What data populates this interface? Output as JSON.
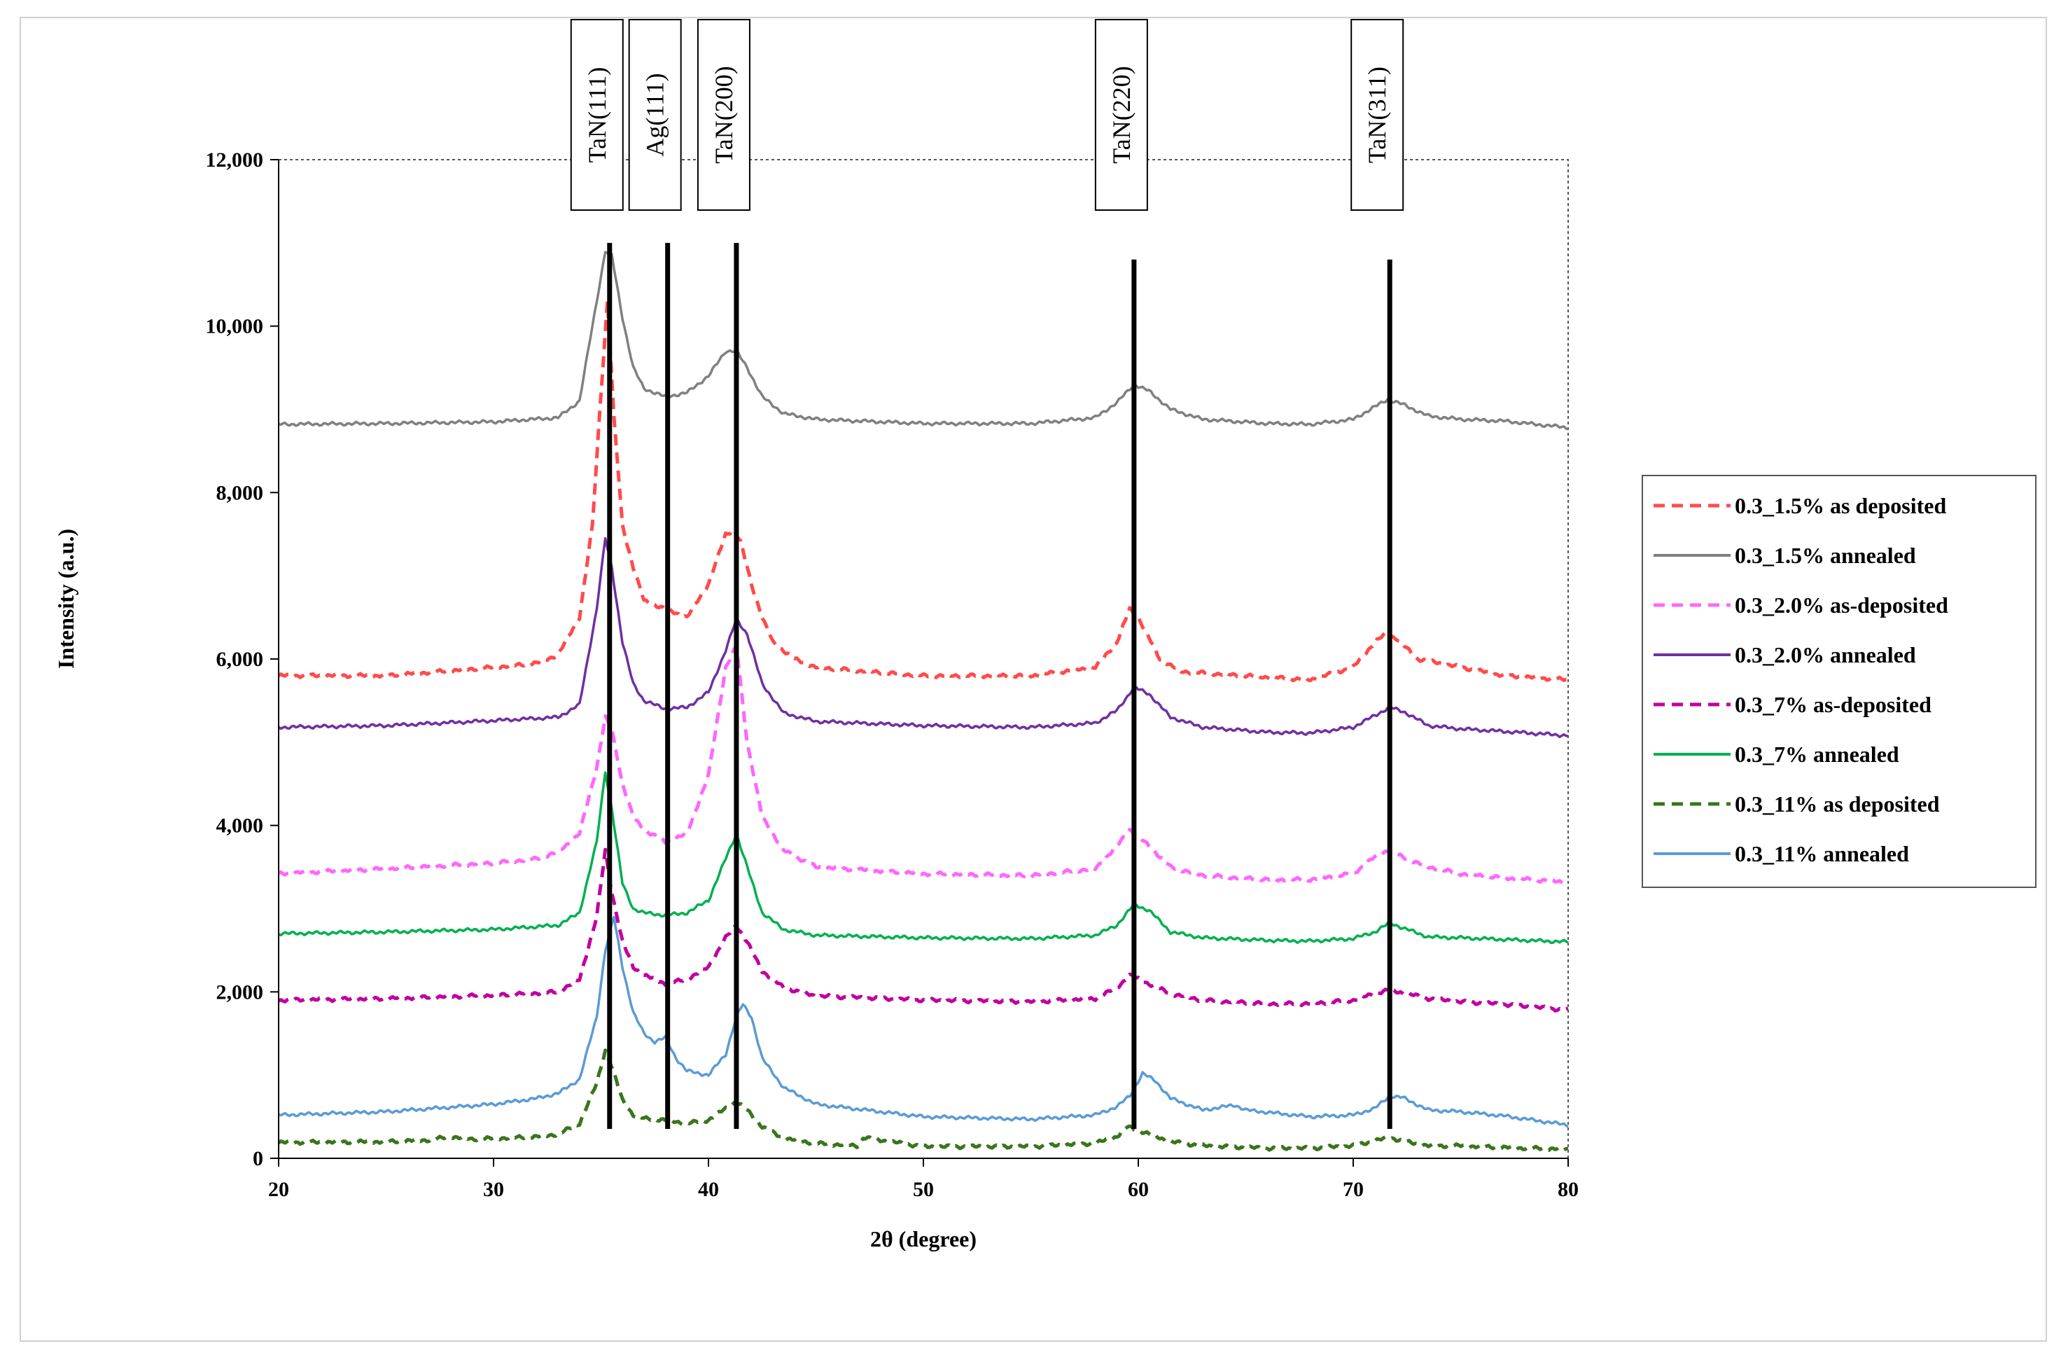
{
  "chart_data": {
    "type": "line",
    "title": "",
    "xlabel": "2θ (degree)",
    "ylabel": "Intensity (a.u.)",
    "xlim": [
      20,
      80
    ],
    "ylim": [
      0,
      12000
    ],
    "x_ticks": [
      20,
      30,
      40,
      50,
      60,
      70,
      80
    ],
    "x_tick_labels": [
      "20",
      "30",
      "40",
      "50",
      "60",
      "70",
      "80"
    ],
    "y_ticks": [
      0,
      2000,
      4000,
      6000,
      8000,
      10000,
      12000
    ],
    "y_tick_labels": [
      "0",
      "2,000",
      "4,000",
      "6,000",
      "8,000",
      "10,000",
      "12,000"
    ],
    "grid": false,
    "legend_position": "right",
    "reference_lines": [
      {
        "label": "TaN(111)",
        "x": 35.4,
        "y_top": 11000
      },
      {
        "label": "Ag(111)",
        "x": 38.1,
        "y_top": 11000
      },
      {
        "label": "TaN(200)",
        "x": 41.3,
        "y_top": 11000
      },
      {
        "label": "TaN(220)",
        "x": 59.8,
        "y_top": 10800
      },
      {
        "label": "TaN(311)",
        "x": 71.7,
        "y_top": 10800
      }
    ],
    "series": [
      {
        "name": "0.3_1.5% as deposited",
        "color": "#ff4b4b",
        "dash": true,
        "x": [
          20,
          25,
          30,
          32,
          33,
          34,
          34.6,
          35.0,
          35.3,
          35.6,
          36.0,
          36.5,
          37,
          38,
          39,
          40,
          40.8,
          41.2,
          41.5,
          42,
          42.5,
          43,
          44,
          45,
          50,
          55,
          58,
          59,
          59.6,
          60,
          61,
          62,
          65,
          68,
          70,
          71,
          71.5,
          72,
          73,
          75,
          77,
          80
        ],
        "y": [
          5800,
          5800,
          5900,
          5950,
          6050,
          6500,
          7600,
          9200,
          10300,
          8900,
          7600,
          7100,
          6700,
          6600,
          6500,
          6900,
          7500,
          7550,
          7400,
          6900,
          6500,
          6200,
          6000,
          5900,
          5800,
          5800,
          5900,
          6200,
          6600,
          6500,
          6000,
          5850,
          5800,
          5750,
          5900,
          6200,
          6300,
          6250,
          6000,
          5900,
          5800,
          5750
        ]
      },
      {
        "name": "0.3_1.5% annealed",
        "color": "#808080",
        "dash": false,
        "x": [
          20,
          25,
          30,
          33,
          34,
          34.8,
          35.2,
          35.5,
          36.0,
          36.5,
          37,
          38,
          39,
          40,
          40.8,
          41.3,
          41.8,
          42.5,
          43.5,
          45,
          50,
          55,
          58,
          59,
          59.8,
          60.5,
          61.5,
          63,
          66,
          68,
          70,
          71,
          71.6,
          72.3,
          73.5,
          75,
          77,
          80
        ],
        "y": [
          8820,
          8830,
          8850,
          8900,
          9100,
          10300,
          10900,
          10850,
          10100,
          9500,
          9250,
          9150,
          9200,
          9400,
          9700,
          9700,
          9500,
          9150,
          8950,
          8880,
          8830,
          8830,
          8900,
          9080,
          9300,
          9220,
          9000,
          8880,
          8830,
          8820,
          8880,
          9030,
          9120,
          9060,
          8920,
          8880,
          8860,
          8780
        ]
      },
      {
        "name": "0.3_2.0% as-deposited",
        "color": "#ff66ff",
        "dash": true,
        "x": [
          20,
          25,
          30,
          32,
          33,
          34,
          34.8,
          35.2,
          35.5,
          36.0,
          36.5,
          37,
          38,
          39,
          40,
          40.8,
          41.3,
          41.8,
          42.5,
          43.5,
          45,
          50,
          55,
          58,
          59,
          59.6,
          60.3,
          61.5,
          63,
          66,
          68,
          70,
          71,
          71.6,
          72.3,
          73.5,
          75,
          77,
          80
        ],
        "y": [
          3420,
          3480,
          3550,
          3600,
          3680,
          3900,
          4700,
          5300,
          5150,
          4500,
          4100,
          3950,
          3800,
          3900,
          4600,
          5900,
          6150,
          5000,
          4100,
          3700,
          3500,
          3420,
          3400,
          3480,
          3750,
          3950,
          3800,
          3500,
          3400,
          3350,
          3350,
          3420,
          3620,
          3700,
          3620,
          3500,
          3420,
          3370,
          3320
        ]
      },
      {
        "name": "0.3_2.0% annealed",
        "color": "#7030a0",
        "dash": false,
        "x": [
          20,
          25,
          30,
          33,
          34,
          34.8,
          35.2,
          35.5,
          36.0,
          36.5,
          37,
          38,
          39,
          40,
          40.8,
          41.3,
          41.8,
          42.5,
          43.5,
          45,
          50,
          55,
          58,
          59,
          59.8,
          60.5,
          61.5,
          63,
          66,
          68,
          70,
          71,
          71.7,
          72.4,
          73.5,
          75,
          77,
          80
        ],
        "y": [
          5180,
          5200,
          5260,
          5300,
          5450,
          6600,
          7450,
          7100,
          6200,
          5700,
          5500,
          5400,
          5420,
          5600,
          6100,
          6480,
          6300,
          5700,
          5350,
          5250,
          5200,
          5180,
          5230,
          5380,
          5660,
          5580,
          5300,
          5180,
          5120,
          5110,
          5180,
          5320,
          5420,
          5360,
          5200,
          5160,
          5130,
          5080
        ]
      },
      {
        "name": "0.3_7% as-deposited",
        "color": "#c000a0",
        "dash": true,
        "x": [
          20,
          25,
          30,
          33,
          34,
          34.8,
          35.2,
          35.5,
          36.0,
          36.5,
          37,
          38,
          39,
          40,
          40.8,
          41.3,
          41.8,
          42.5,
          43.5,
          45,
          50,
          55,
          58,
          59,
          59.6,
          60.3,
          61.5,
          63,
          66,
          68,
          70,
          71,
          71.6,
          72.3,
          73.5,
          75,
          77,
          80
        ],
        "y": [
          1900,
          1920,
          1960,
          2000,
          2150,
          2900,
          3700,
          3200,
          2600,
          2300,
          2200,
          2100,
          2150,
          2300,
          2650,
          2800,
          2600,
          2250,
          2050,
          1950,
          1900,
          1880,
          1920,
          2050,
          2200,
          2120,
          1980,
          1900,
          1860,
          1860,
          1900,
          1980,
          2020,
          1990,
          1920,
          1880,
          1850,
          1780
        ]
      },
      {
        "name": "0.3_7% annealed",
        "color": "#00b050",
        "dash": false,
        "x": [
          20,
          25,
          30,
          33,
          34,
          34.8,
          35.2,
          35.5,
          36.0,
          36.5,
          37,
          38,
          39,
          40,
          40.8,
          41.3,
          41.8,
          42.5,
          43.5,
          45,
          50,
          55,
          58,
          59,
          59.8,
          60.5,
          61.5,
          63,
          66,
          68,
          70,
          71,
          71.7,
          72.4,
          73.5,
          75,
          77,
          80
        ],
        "y": [
          2700,
          2720,
          2750,
          2800,
          2950,
          3800,
          4650,
          4200,
          3300,
          3000,
          2950,
          2920,
          2950,
          3100,
          3600,
          3900,
          3500,
          2950,
          2750,
          2680,
          2650,
          2640,
          2680,
          2800,
          3050,
          2980,
          2720,
          2650,
          2620,
          2610,
          2640,
          2720,
          2830,
          2760,
          2660,
          2650,
          2630,
          2600
        ]
      },
      {
        "name": "0.3_11% as deposited",
        "color": "#38761d",
        "dash": true,
        "x": [
          20,
          25,
          27,
          28,
          29,
          30,
          32,
          33,
          34,
          34.8,
          35.2,
          35.5,
          36.0,
          36.5,
          37,
          38,
          39,
          40,
          40.8,
          41.3,
          41.8,
          42.5,
          43.5,
          45,
          47,
          47.2,
          50,
          55,
          58,
          59,
          59.5,
          60.2,
          61.5,
          63,
          66,
          68,
          70,
          71,
          71.7,
          72.4,
          73.5,
          75,
          77,
          80
        ],
        "y": [
          190,
          200,
          220,
          260,
          230,
          240,
          260,
          290,
          420,
          900,
          1300,
          1100,
          700,
          520,
          480,
          460,
          420,
          460,
          600,
          680,
          580,
          380,
          240,
          180,
          150,
          250,
          140,
          140,
          180,
          260,
          380,
          320,
          200,
          150,
          120,
          120,
          150,
          210,
          250,
          200,
          150,
          150,
          130,
          110
        ]
      },
      {
        "name": "0.3_11% annealed",
        "color": "#5b9bd5",
        "dash": false,
        "x": [
          20,
          25,
          30,
          32,
          33,
          34,
          34.8,
          35.2,
          35.6,
          36.0,
          36.5,
          37,
          37.5,
          38.0,
          38.5,
          39,
          40,
          40.8,
          41.3,
          41.6,
          42.0,
          42.5,
          43.5,
          45,
          50,
          55,
          58,
          59,
          59.6,
          60.2,
          60.8,
          61.5,
          63,
          64.5,
          65,
          68,
          70,
          71,
          71.7,
          72.3,
          73.5,
          75,
          77,
          80
        ],
        "y": [
          520,
          560,
          650,
          720,
          780,
          950,
          1700,
          2500,
          2900,
          2300,
          1750,
          1500,
          1400,
          1450,
          1200,
          1050,
          1000,
          1250,
          1700,
          1850,
          1700,
          1200,
          850,
          650,
          500,
          470,
          520,
          620,
          750,
          1020,
          930,
          720,
          580,
          640,
          580,
          500,
          520,
          600,
          750,
          730,
          580,
          560,
          510,
          400
        ]
      }
    ]
  }
}
